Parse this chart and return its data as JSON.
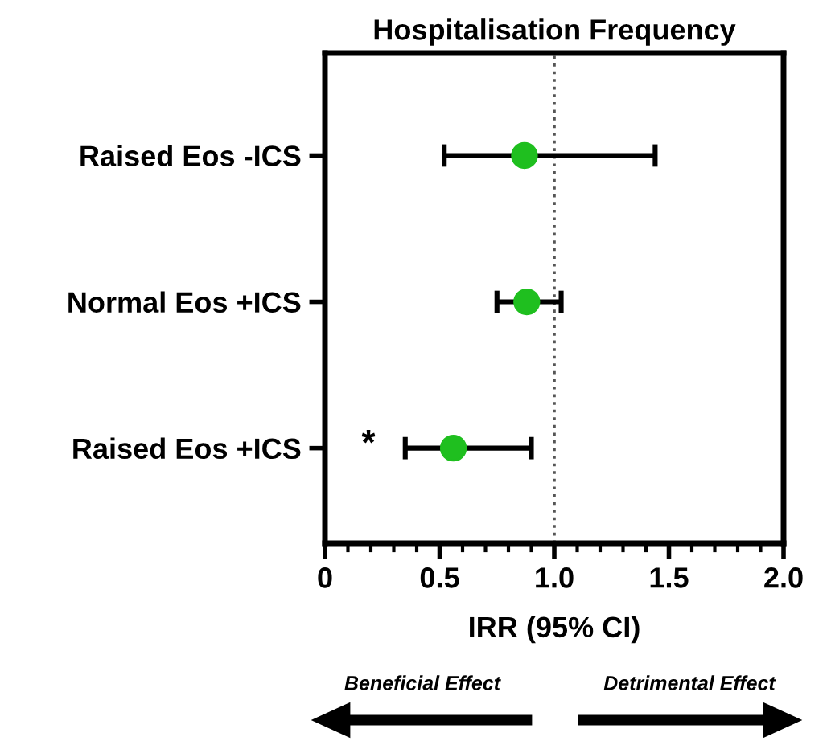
{
  "chart_data": {
    "type": "scatter",
    "orientation": "horizontal",
    "title": "Hospitalisation Frequency",
    "xlabel": "IRR (95% CI)",
    "categories": [
      "Raised Eos -ICS",
      "Normal Eos +ICS",
      "Raised Eos +ICS"
    ],
    "values": [
      0.87,
      0.88,
      0.56
    ],
    "errors": [
      [
        0.52,
        1.44
      ],
      [
        0.75,
        1.03
      ],
      [
        0.35,
        0.9
      ]
    ],
    "color": "#1fbf1f",
    "marker": "circle",
    "xlim": [
      0,
      2
    ],
    "xticks": [
      0,
      {
        "value": 0.1,
        "label": null
      },
      {
        "value": 0.2,
        "label": null
      },
      {
        "value": 0.3,
        "label": null
      },
      {
        "value": 0.4,
        "label": null
      },
      {
        "value": 0.5,
        "label": "0.5"
      },
      {
        "value": 0.6,
        "label": null
      },
      {
        "value": 0.7,
        "label": null
      },
      {
        "value": 0.8,
        "label": null
      },
      {
        "value": 0.9,
        "label": null
      },
      {
        "value": 1.0,
        "label": "1.0"
      },
      {
        "value": 1.1,
        "label": null
      },
      {
        "value": 1.2,
        "label": null
      },
      {
        "value": 1.3,
        "label": null
      },
      {
        "value": 1.4,
        "label": null
      },
      {
        "value": 1.5,
        "label": "1.5"
      },
      {
        "value": 1.6,
        "label": null
      },
      {
        "value": 1.7,
        "label": null
      },
      {
        "value": 1.8,
        "label": null
      },
      {
        "value": 1.9,
        "label": null
      },
      {
        "value": 2.0,
        "label": "2.0"
      }
    ],
    "ref_lines": [
      {
        "axis": "x",
        "value": 1,
        "line_style": "dotted",
        "color": "#555555"
      }
    ],
    "grid": false,
    "legend": false,
    "annotations": [
      "*",
      "Beneficial Effect",
      "Detrimental Effect"
    ]
  }
}
